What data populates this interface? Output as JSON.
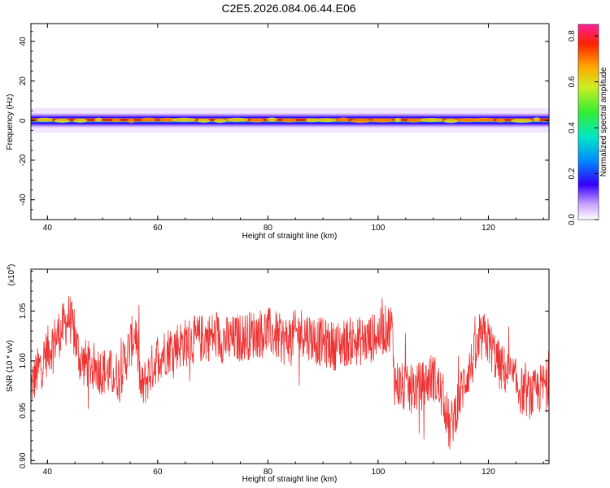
{
  "title": "C2E5.2026.084.06.44.E06",
  "chart_data": [
    {
      "type": "heatmap",
      "title": "C2E5.2026.084.06.44.E06",
      "xlabel": "Height of straight line (km)",
      "ylabel": "Frequency (Hz)",
      "xlim": [
        37,
        131
      ],
      "ylim": [
        -50,
        49
      ],
      "xticks": [
        "40",
        "60",
        "80",
        "100",
        "120"
      ],
      "yticks": [
        "40",
        "20",
        "0",
        "-20",
        "-40"
      ],
      "colorbar": {
        "label": "Normalized spectral amplitude",
        "range": [
          0.0,
          0.85
        ],
        "ticks": [
          "0.8",
          "0.6",
          "0.4",
          "0.2",
          "0.0"
        ]
      },
      "band": {
        "center_frequency": 0,
        "note": "energy concentrated within about ±3 Hz of 0 Hz across all heights",
        "peak_segments_km": [
          [
            38,
            131
          ]
        ]
      }
    },
    {
      "type": "line",
      "xlabel": "Height of straight line (km)",
      "ylabel": "SNR (10 * v/v)",
      "yscale_label": "(x10",
      "yscale_exp": "4",
      "xlim": [
        37,
        131
      ],
      "ylim": [
        0.897,
        1.092
      ],
      "xticks": [
        "40",
        "60",
        "80",
        "100",
        "120"
      ],
      "yticks": [
        "1.05",
        "1.00",
        "0.95",
        "0.90"
      ],
      "series": [
        {
          "color": "#ee3333",
          "x": [
            37,
            40,
            43,
            44,
            46,
            50,
            53,
            55,
            56,
            57,
            60,
            63,
            66,
            70,
            73,
            76,
            80,
            83,
            86,
            89,
            92,
            95,
            98,
            101,
            102.5,
            103,
            105,
            108,
            110,
            112,
            113,
            114,
            116,
            118,
            119,
            120,
            122,
            124,
            126,
            128,
            131
          ],
          "y": [
            0.975,
            1.01,
            1.035,
            1.045,
            1.0,
            0.99,
            0.985,
            1.015,
            1.03,
            0.97,
            1.005,
            1.015,
            1.02,
            1.025,
            1.02,
            1.025,
            1.03,
            1.02,
            1.03,
            1.02,
            1.015,
            1.02,
            1.02,
            1.03,
            1.035,
            0.98,
            0.97,
            0.975,
            0.985,
            0.96,
            0.93,
            0.95,
            0.985,
            1.01,
            1.025,
            1.02,
            0.995,
            0.985,
            0.97,
            0.965,
            0.98
          ]
        }
      ]
    }
  ]
}
